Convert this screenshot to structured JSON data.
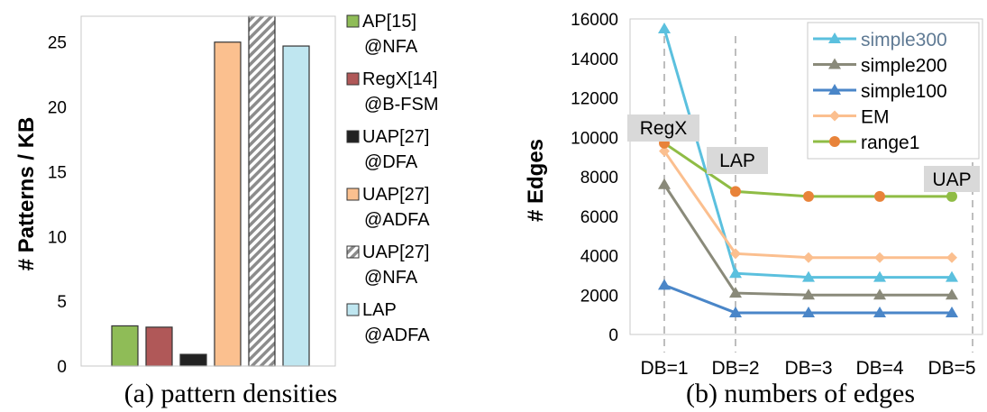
{
  "chart_data": [
    {
      "type": "bar",
      "ylabel": "# Patterns / KB",
      "ylim": [
        0,
        27
      ],
      "yticks": [
        "0",
        "5",
        "10",
        "15",
        "20",
        "25"
      ],
      "grid": false,
      "legend_position": "right",
      "caption": "(a) pattern densities",
      "series": [
        {
          "line1": "AP[15]",
          "line2": "@NFA",
          "value": 3.1,
          "color": "#8fbc57",
          "pattern": "solid"
        },
        {
          "line1": "RegX[14]",
          "line2": "@B-FSM",
          "value": 3.0,
          "color": "#b05858",
          "pattern": "solid"
        },
        {
          "line1": "UAP[27]",
          "line2": "@DFA",
          "value": 0.9,
          "color": "#222222",
          "pattern": "solid"
        },
        {
          "line1": "UAP[27]",
          "line2": "@ADFA",
          "value": 25.0,
          "color": "#fbc08f",
          "pattern": "solid"
        },
        {
          "line1": "UAP[27]",
          "line2": "@NFA",
          "value": 27.0,
          "color": "#8c8c8c",
          "pattern": "hatch"
        },
        {
          "line1": "LAP",
          "line2": "@ADFA",
          "value": 24.7,
          "color": "#bfe6f0",
          "pattern": "solid"
        }
      ]
    },
    {
      "type": "line",
      "ylabel": "# Edges",
      "ylim": [
        0,
        16000
      ],
      "yticks": [
        "0",
        "2000",
        "4000",
        "6000",
        "8000",
        "10000",
        "12000",
        "14000",
        "16000"
      ],
      "categories": [
        "DB=1",
        "DB=2",
        "DB=3",
        "DB=4",
        "DB=5"
      ],
      "grid": false,
      "legend_position": "top-right",
      "caption": "(b) numbers of edges",
      "annotations": [
        "RegX",
        "LAP",
        "UAP"
      ],
      "series": [
        {
          "name": "simple300",
          "values": [
            15500,
            3100,
            2900,
            2900,
            2900
          ],
          "color": "#5bc0de",
          "marker": "triangle"
        },
        {
          "name": "simple200",
          "values": [
            7600,
            2100,
            2000,
            2000,
            2000
          ],
          "color": "#8a8a7a",
          "marker": "triangle"
        },
        {
          "name": "simple100",
          "values": [
            2500,
            1100,
            1100,
            1100,
            1100
          ],
          "color": "#4a86c8",
          "marker": "triangle"
        },
        {
          "name": "EM",
          "values": [
            9300,
            4100,
            3900,
            3900,
            3900
          ],
          "color": "#fbbf8f",
          "marker": "diamond"
        },
        {
          "name": "range1",
          "values": [
            9700,
            7250,
            7000,
            7000,
            7000
          ],
          "color": "#8fbc45",
          "marker": "circle",
          "marker_colors": [
            "#e8833a",
            "#e8833a",
            "#e8833a",
            "#e8833a",
            "#8fbc45"
          ]
        }
      ]
    }
  ]
}
